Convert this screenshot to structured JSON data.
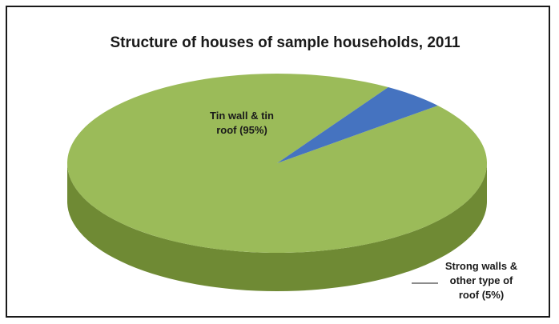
{
  "chart_data": {
    "type": "pie",
    "title": "Structure of houses of sample households, 2011",
    "slices": [
      {
        "name": "Tin wall & tin roof",
        "value": 95,
        "label_lines": [
          "Tin wall & tin",
          "roof (95%)"
        ],
        "color": "#9bbb59",
        "side_color": "#6f8a34"
      },
      {
        "name": "Strong walls & other type of roof",
        "value": 5,
        "label_lines": [
          "Strong walls &",
          "other type of",
          "roof (5%)"
        ],
        "color": "#4573c0",
        "side_color": "#1f3f70"
      }
    ],
    "style": "3d"
  }
}
